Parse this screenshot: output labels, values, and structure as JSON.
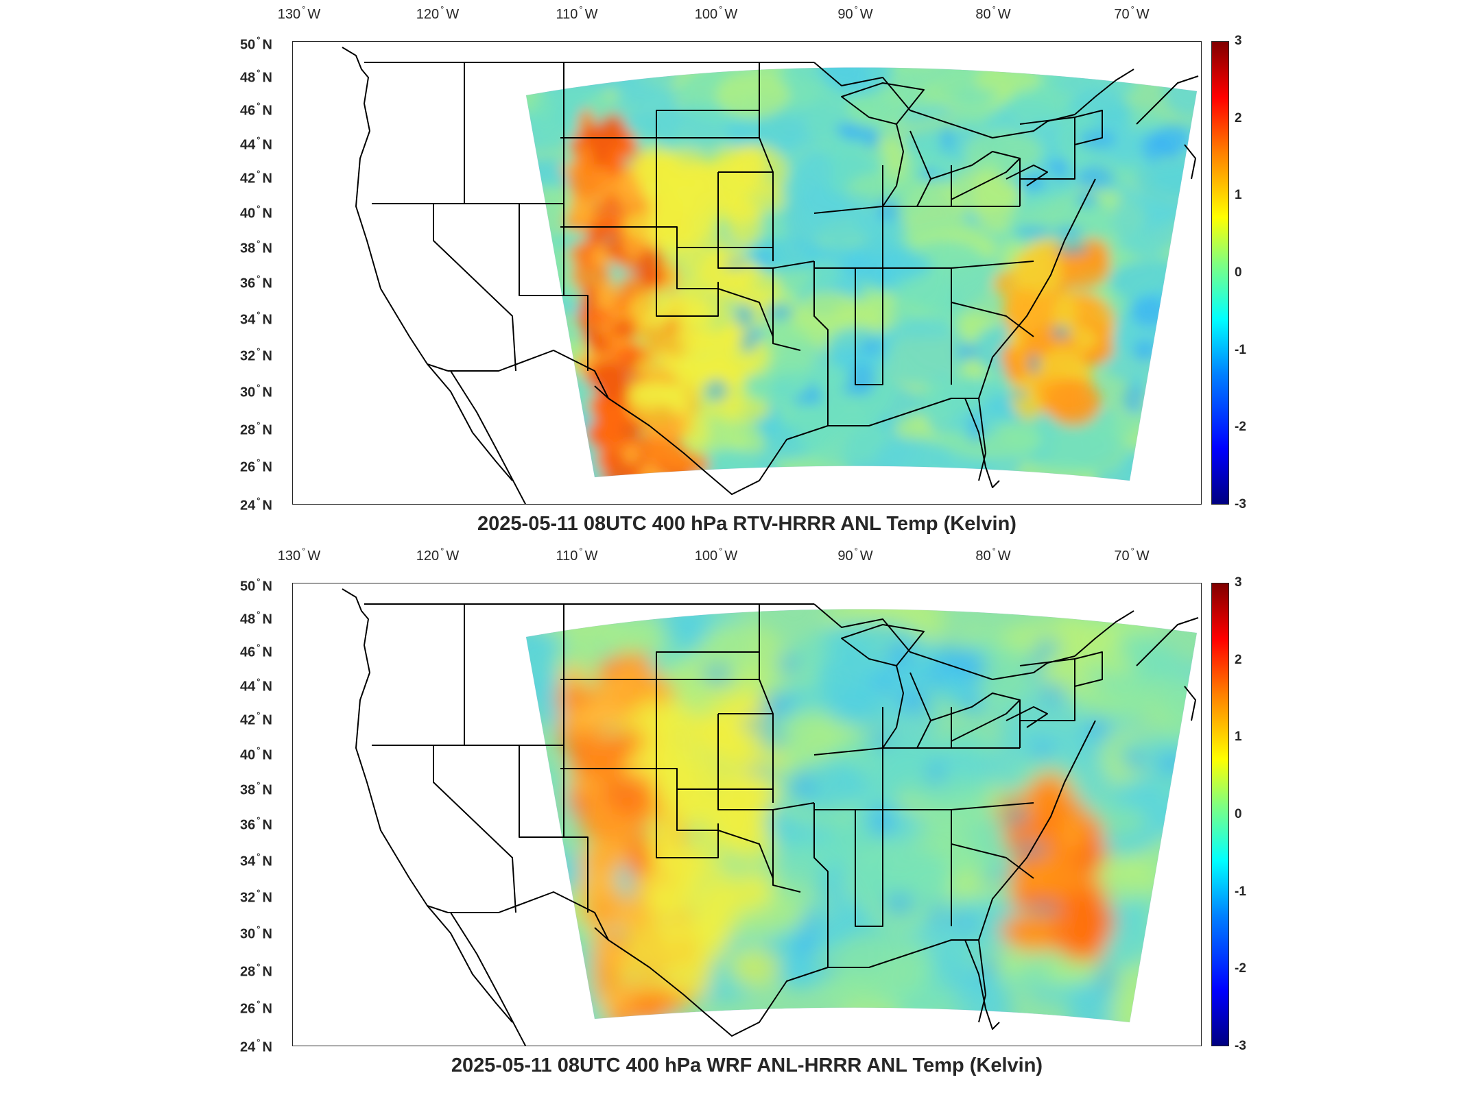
{
  "maps": [
    {
      "title": "2025-05-11 08UTC 400 hPa RTV-HRRR ANL Temp (Kelvin)",
      "field": "rtv"
    },
    {
      "title": "2025-05-11 08UTC 400 hPa WRF ANL-HRRR ANL Temp (Kelvin)",
      "field": "wrf"
    }
  ],
  "axes": {
    "lon_ticks": [
      "130",
      "120",
      "110",
      "100",
      "90",
      "80",
      "70"
    ],
    "lon_suffix": "W",
    "lat_ticks": [
      "50",
      "48",
      "46",
      "44",
      "42",
      "40",
      "38",
      "36",
      "34",
      "32",
      "30",
      "28",
      "26",
      "24"
    ],
    "lat_suffix": "N"
  },
  "colorbar": {
    "ticks": [
      "3",
      "2",
      "1",
      "0",
      "-1",
      "-2",
      "-3"
    ],
    "range": [
      -3,
      3
    ],
    "colormap": "jet"
  },
  "colors": {
    "land_outline": "#000000",
    "frame": "#262626"
  }
}
